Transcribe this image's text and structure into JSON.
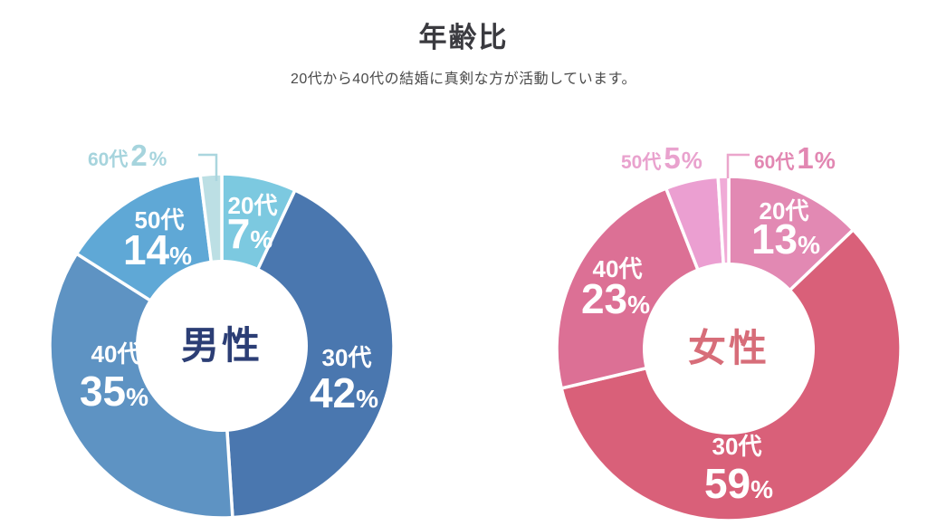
{
  "header": {
    "title": "年齢比",
    "subtitle": "20代から40代の結婚に真剣な方が活動しています。"
  },
  "chart_data": [
    {
      "type": "donut",
      "id": "male",
      "center_label": "男性",
      "center_color": "#2c3e75",
      "legend_position": "on-slice",
      "segments": [
        {
          "label": "20代",
          "value": 7,
          "unit": "%",
          "color": "#7cc9e0"
        },
        {
          "label": "30代",
          "value": 42,
          "unit": "%",
          "color": "#4a77af"
        },
        {
          "label": "40代",
          "value": 35,
          "unit": "%",
          "color": "#5e93c3"
        },
        {
          "label": "50代",
          "value": 14,
          "unit": "%",
          "color": "#5fa8d6"
        },
        {
          "label": "60代",
          "value": 2,
          "unit": "%",
          "color": "#bcdfe4",
          "label_color": "#a6d4dd",
          "line_color": "#aad6de"
        }
      ]
    },
    {
      "type": "donut",
      "id": "female",
      "center_label": "女性",
      "center_color": "#d76d79",
      "legend_position": "on-slice",
      "segments": [
        {
          "label": "20代",
          "value": 13,
          "unit": "%",
          "color": "#e289b3"
        },
        {
          "label": "30代",
          "value": 59,
          "unit": "%",
          "color": "#d96079"
        },
        {
          "label": "40代",
          "value": 23,
          "unit": "%",
          "color": "#dc7095"
        },
        {
          "label": "50代",
          "value": 5,
          "unit": "%",
          "color": "#eb9fd1",
          "label_color": "#e9a2ce"
        },
        {
          "label": "60代",
          "value": 1,
          "unit": "%",
          "color": "#f0abd7",
          "label_color": "#e287b2",
          "line_color": "#eba6cc"
        }
      ]
    }
  ]
}
